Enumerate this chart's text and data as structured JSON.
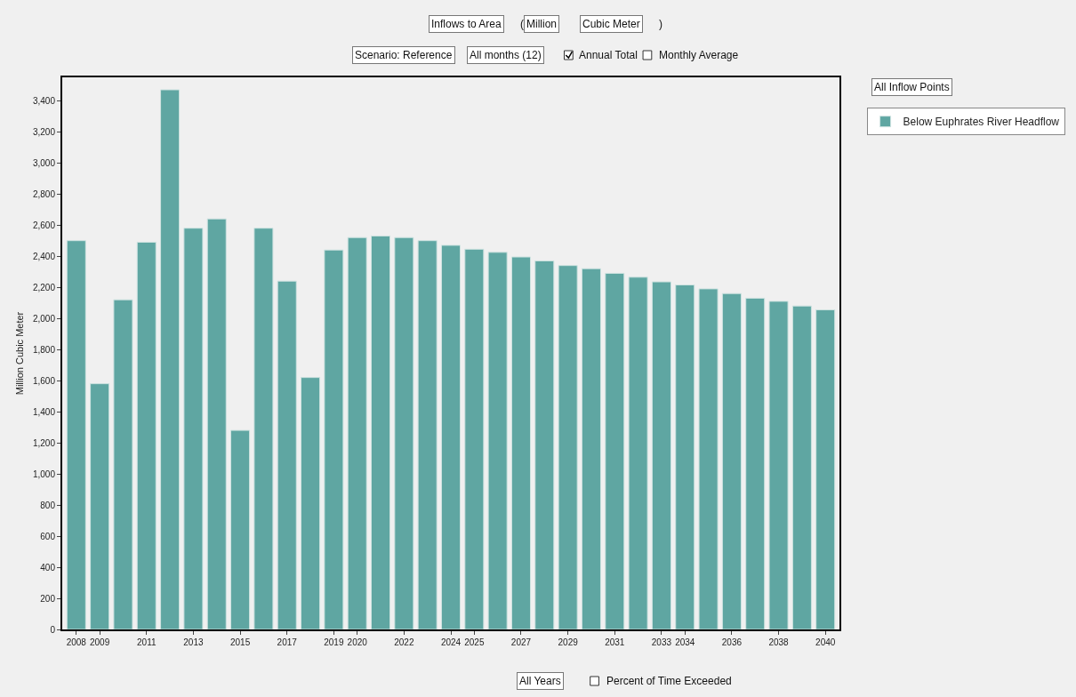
{
  "chart_data": {
    "type": "bar",
    "ylabel": "Million Cubic Meter",
    "categories": [
      "2008",
      "2009",
      null,
      "2011",
      null,
      "2013",
      null,
      "2015",
      null,
      "2017",
      null,
      "2019",
      "2020",
      null,
      "2022",
      null,
      "2024",
      "2025",
      null,
      "2027",
      null,
      "2029",
      null,
      "2031",
      null,
      "2033",
      "2034",
      null,
      "2036",
      null,
      "2038",
      null,
      "2040"
    ],
    "series": [
      {
        "name": "Below Euphrates River Headflow",
        "color": "#5fa6a2",
        "values": [
          2500,
          1580,
          2120,
          2490,
          3470,
          2580,
          2640,
          1280,
          2580,
          2240,
          1620,
          2440,
          2520,
          2530,
          2520,
          2500,
          2470,
          2445,
          2425,
          2395,
          2370,
          2340,
          2320,
          2290,
          2265,
          2235,
          2215,
          2190,
          2160,
          2130,
          2110,
          2080,
          2055
        ]
      }
    ],
    "ylim": [
      0,
      3550
    ],
    "yticks": [
      0,
      200,
      400,
      600,
      800,
      {
        "value": 1000,
        "label": "1,000"
      },
      {
        "value": 1200,
        "label": "1,200"
      },
      {
        "value": 1400,
        "label": "1,400"
      },
      {
        "value": 1600,
        "label": "1,600"
      },
      {
        "value": 1800,
        "label": "1,800"
      },
      {
        "value": 2000,
        "label": "2,000"
      },
      {
        "value": 2200,
        "label": "2,200"
      },
      {
        "value": 2400,
        "label": "2,400"
      },
      {
        "value": 2600,
        "label": "2,600"
      },
      {
        "value": 2800,
        "label": "2,800"
      },
      {
        "value": 3000,
        "label": "3,000"
      },
      {
        "value": 3200,
        "label": "3,200"
      },
      {
        "value": 3400,
        "label": "3,400"
      }
    ],
    "grid": false,
    "legend": "top right",
    "annotations": [
      "Inflows to Area",
      "(",
      "Million",
      "Cubic Meter",
      ")",
      "Scenario: Reference",
      "All months (12)",
      "Annual Total",
      "Monthly Average",
      "All Inflow Points",
      "All Years",
      "Percent of Time Exceeded"
    ]
  }
}
